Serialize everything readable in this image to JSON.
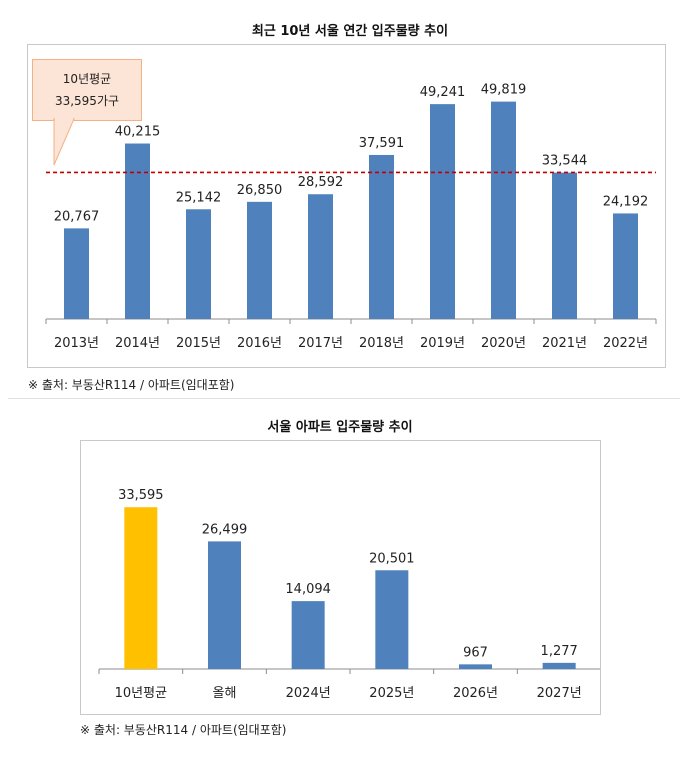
{
  "chart_data": [
    {
      "type": "bar",
      "title": "최근 10년 서울 연간 입주물량 추이",
      "categories": [
        "2013년",
        "2014년",
        "2015년",
        "2016년",
        "2017년",
        "2018년",
        "2019년",
        "2020년",
        "2021년",
        "2022년"
      ],
      "values": [
        20767,
        40215,
        25142,
        26850,
        28592,
        37591,
        49241,
        49819,
        33544,
        24192
      ],
      "value_labels": [
        "20,767",
        "40,215",
        "25,142",
        "26,850",
        "28,592",
        "37,591",
        "49,241",
        "49,819",
        "33,544",
        "24,192"
      ],
      "average": 33595,
      "average_callout": {
        "line1": "10년평균",
        "line2": "33,595가구"
      },
      "ylim": [
        0,
        55000
      ],
      "bar_color": "#4f81bd",
      "average_line_color": "#c00000",
      "source": "※ 출처: 부동산R114 / 아파트(임대포함)"
    },
    {
      "type": "bar",
      "title": "서울 아파트 입주물량 추이",
      "categories": [
        "10년평균",
        "올해",
        "2024년",
        "2025년",
        "2026년",
        "2027년"
      ],
      "values": [
        33595,
        26499,
        14094,
        20501,
        967,
        1277
      ],
      "value_labels": [
        "33,595",
        "26,499",
        "14,094",
        "20,501",
        "967",
        "1,277"
      ],
      "ylim": [
        0,
        38000
      ],
      "bar_color": "#4f81bd",
      "highlight_color": "#ffc000",
      "highlight_index": 0,
      "source": "※ 출처: 부동산R114 / 아파트(임대포함)"
    }
  ]
}
